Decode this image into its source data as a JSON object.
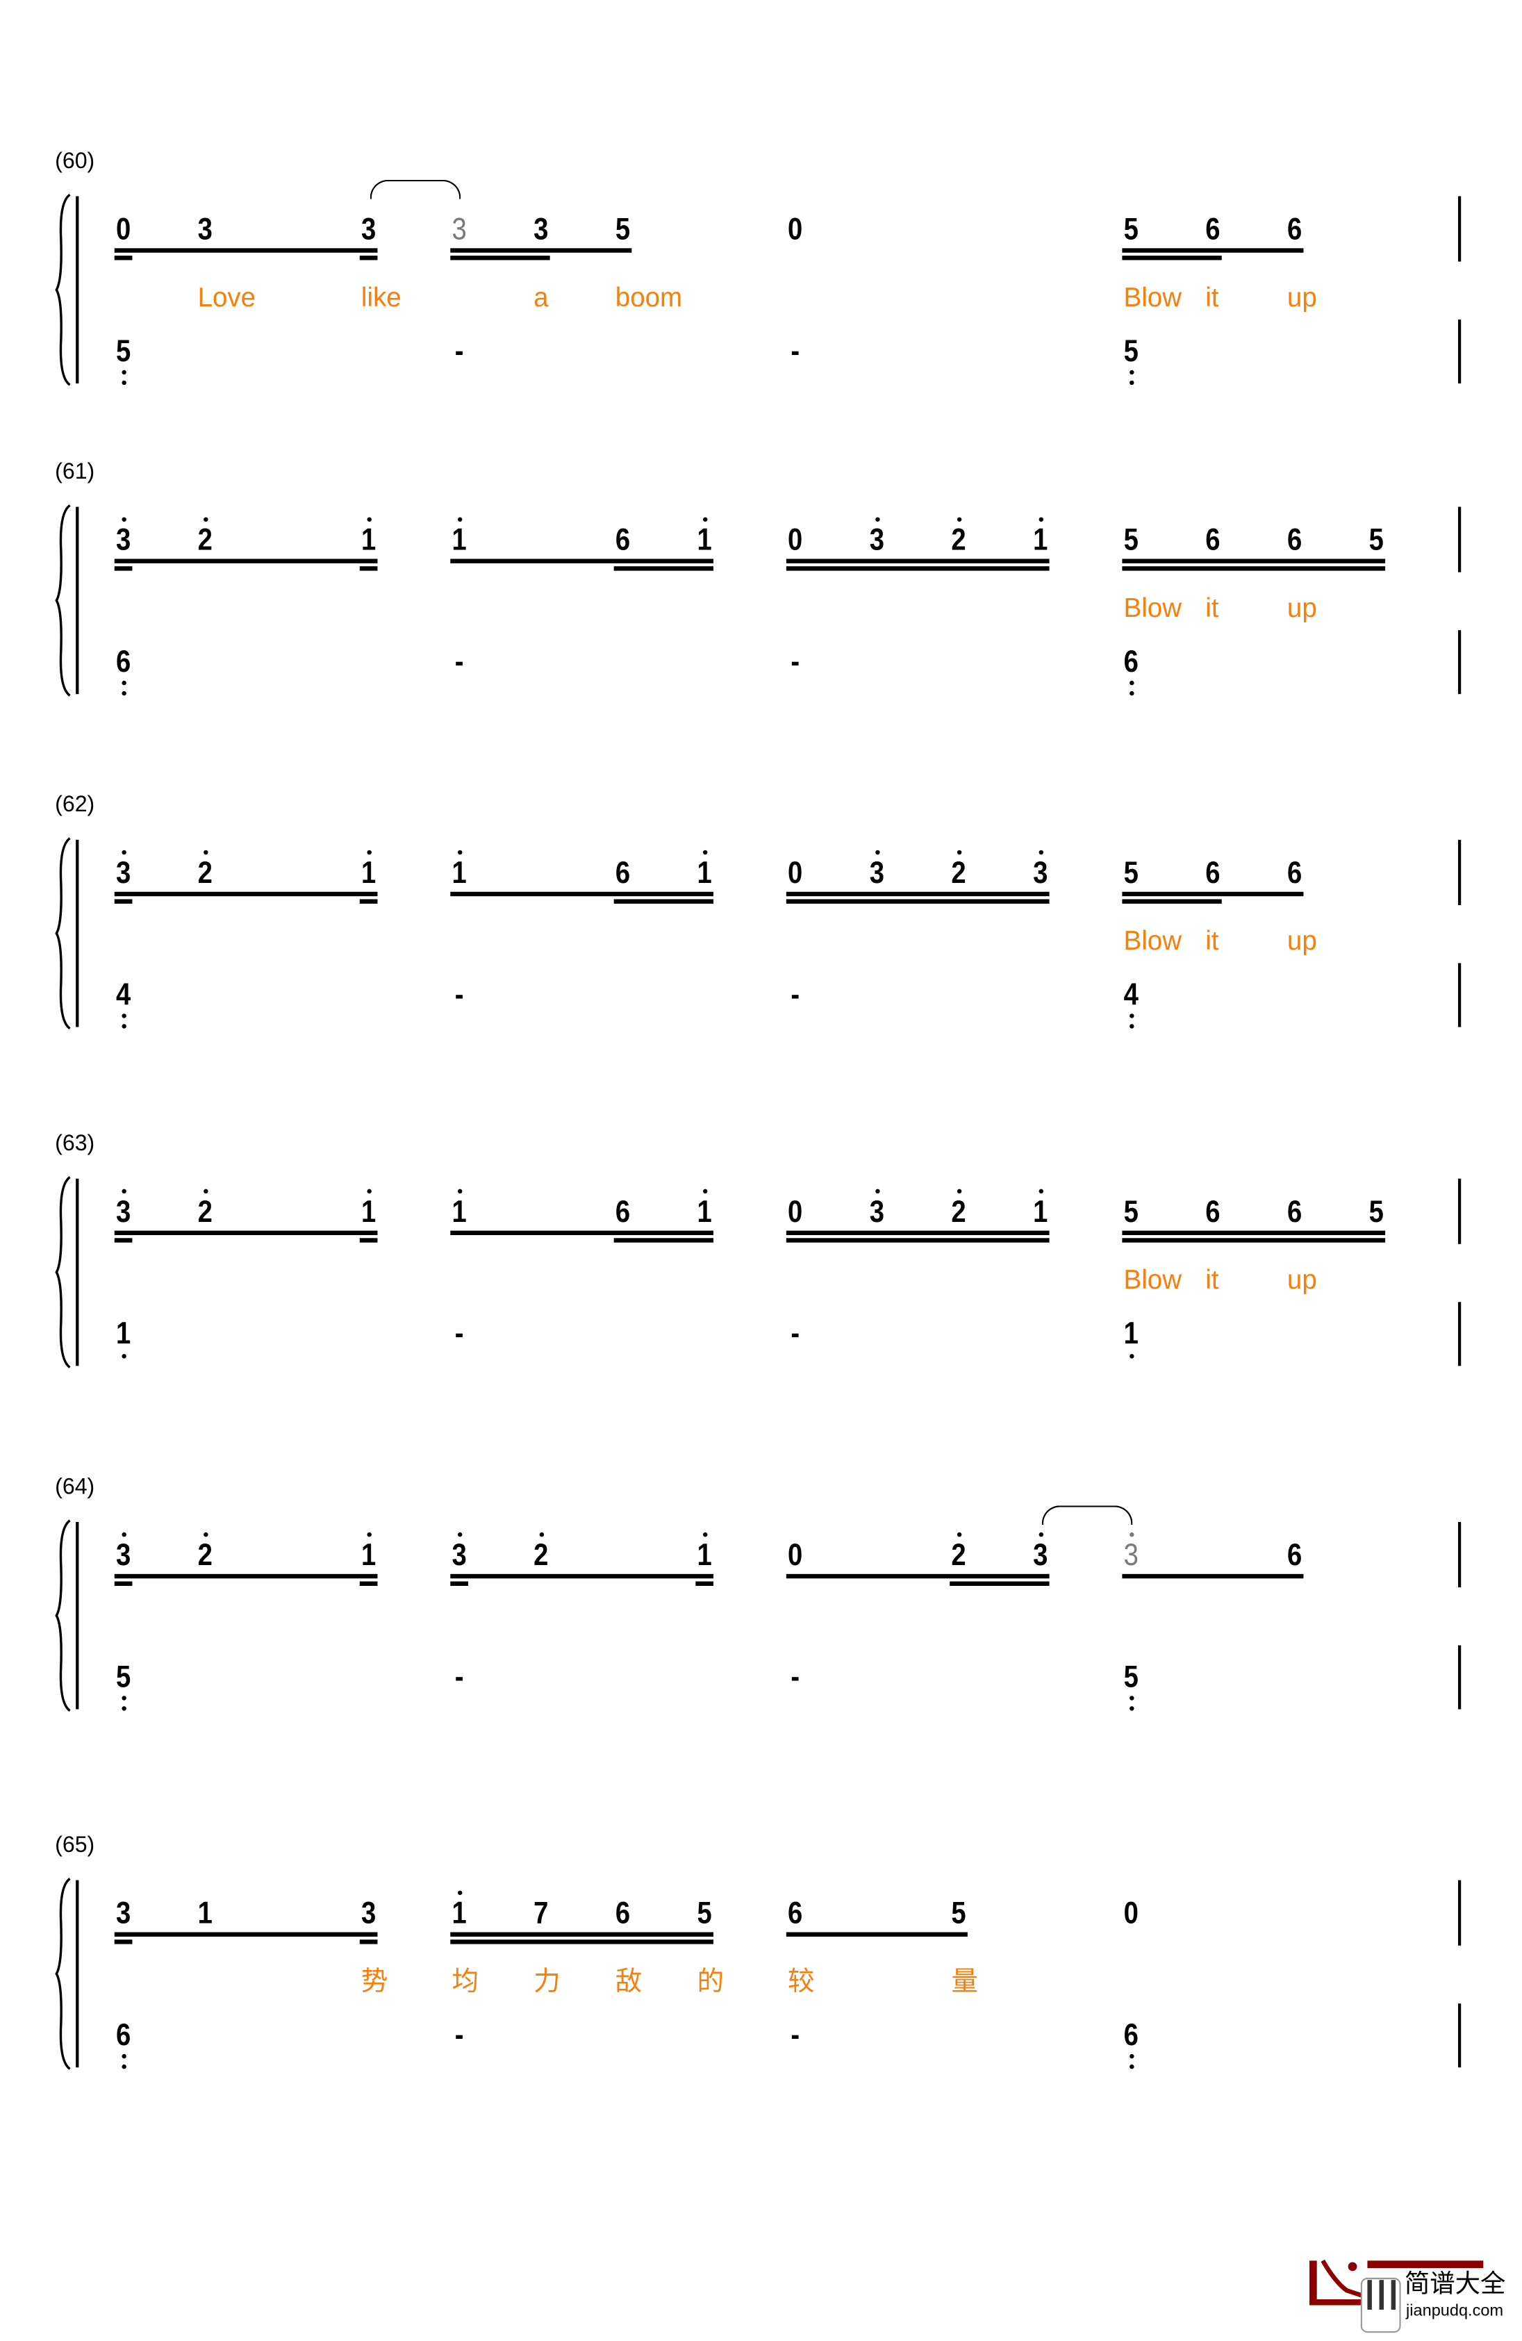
{
  "colors": {
    "lyrics": "#f77f0e",
    "notes": "#000000",
    "grace_notes": "#7a7a7a",
    "logo": "#8b0000"
  },
  "systems": [
    {
      "label": "(60)",
      "top": [
        {
          "s": 0,
          "n": "0"
        },
        {
          "s": 1,
          "n": "3"
        },
        {
          "s": 3,
          "n": "3"
        },
        {
          "s": 4,
          "n": "3",
          "gray": true
        },
        {
          "s": 5,
          "n": "3"
        },
        {
          "s": 6,
          "n": "5"
        },
        {
          "s": 8,
          "n": "0"
        },
        {
          "s": 12,
          "n": "5"
        },
        {
          "s": 13,
          "n": "6"
        },
        {
          "s": 14,
          "n": "6"
        }
      ],
      "beams1": [
        [
          0,
          3
        ],
        [
          4,
          6
        ],
        [
          12,
          14
        ]
      ],
      "beams2": [
        [
          0,
          0
        ],
        [
          3,
          3
        ],
        [
          4,
          5
        ],
        [
          12,
          13
        ]
      ],
      "ties": [
        [
          3,
          4
        ]
      ],
      "lyrics": [
        {
          "s": 1,
          "t": "Love"
        },
        {
          "s": 3,
          "t": "like"
        },
        {
          "s": 5,
          "t": "a"
        },
        {
          "s": 6,
          "t": "boom"
        },
        {
          "s": 12,
          "t": "Blow"
        },
        {
          "s": 13,
          "t": "it"
        },
        {
          "s": 14,
          "t": "up"
        }
      ],
      "bass": [
        {
          "s": 0,
          "n": "5",
          "low": 2
        },
        {
          "s": 4,
          "n": "-"
        },
        {
          "s": 8,
          "n": "-"
        },
        {
          "s": 12,
          "n": "5",
          "low": 2
        }
      ]
    },
    {
      "label": "(61)",
      "top": [
        {
          "s": 0,
          "n": "3",
          "up": 1
        },
        {
          "s": 1,
          "n": "2",
          "up": 1
        },
        {
          "s": 3,
          "n": "1",
          "up": 1
        },
        {
          "s": 4,
          "n": "1",
          "up": 1
        },
        {
          "s": 6,
          "n": "6"
        },
        {
          "s": 7,
          "n": "1",
          "up": 1
        },
        {
          "s": 8,
          "n": "0"
        },
        {
          "s": 9,
          "n": "3",
          "up": 1
        },
        {
          "s": 10,
          "n": "2",
          "up": 1
        },
        {
          "s": 11,
          "n": "1",
          "up": 1
        },
        {
          "s": 12,
          "n": "5"
        },
        {
          "s": 13,
          "n": "6"
        },
        {
          "s": 14,
          "n": "6"
        },
        {
          "s": 15,
          "n": "5"
        }
      ],
      "beams1": [
        [
          0,
          3
        ],
        [
          4,
          7
        ],
        [
          8,
          11
        ],
        [
          12,
          15
        ]
      ],
      "beams2": [
        [
          0,
          0
        ],
        [
          3,
          3
        ],
        [
          6,
          7
        ],
        [
          8,
          11
        ],
        [
          12,
          15
        ]
      ],
      "ties": [],
      "lyrics": [
        {
          "s": 12,
          "t": "Blow"
        },
        {
          "s": 13,
          "t": "it"
        },
        {
          "s": 14,
          "t": "up"
        }
      ],
      "bass": [
        {
          "s": 0,
          "n": "6",
          "low": 2
        },
        {
          "s": 4,
          "n": "-"
        },
        {
          "s": 8,
          "n": "-"
        },
        {
          "s": 12,
          "n": "6",
          "low": 2
        }
      ]
    },
    {
      "label": "(62)",
      "top": [
        {
          "s": 0,
          "n": "3",
          "up": 1
        },
        {
          "s": 1,
          "n": "2",
          "up": 1
        },
        {
          "s": 3,
          "n": "1",
          "up": 1
        },
        {
          "s": 4,
          "n": "1",
          "up": 1
        },
        {
          "s": 6,
          "n": "6"
        },
        {
          "s": 7,
          "n": "1",
          "up": 1
        },
        {
          "s": 8,
          "n": "0"
        },
        {
          "s": 9,
          "n": "3",
          "up": 1
        },
        {
          "s": 10,
          "n": "2",
          "up": 1
        },
        {
          "s": 11,
          "n": "3",
          "up": 1
        },
        {
          "s": 12,
          "n": "5"
        },
        {
          "s": 13,
          "n": "6"
        },
        {
          "s": 14,
          "n": "6"
        }
      ],
      "beams1": [
        [
          0,
          3
        ],
        [
          4,
          7
        ],
        [
          8,
          11
        ],
        [
          12,
          14
        ]
      ],
      "beams2": [
        [
          0,
          0
        ],
        [
          3,
          3
        ],
        [
          6,
          7
        ],
        [
          8,
          11
        ],
        [
          12,
          13
        ]
      ],
      "ties": [],
      "lyrics": [
        {
          "s": 12,
          "t": "Blow"
        },
        {
          "s": 13,
          "t": "it"
        },
        {
          "s": 14,
          "t": "up"
        }
      ],
      "bass": [
        {
          "s": 0,
          "n": "4",
          "low": 2
        },
        {
          "s": 4,
          "n": "-"
        },
        {
          "s": 8,
          "n": "-"
        },
        {
          "s": 12,
          "n": "4",
          "low": 2
        }
      ]
    },
    {
      "label": "(63)",
      "top": [
        {
          "s": 0,
          "n": "3",
          "up": 1
        },
        {
          "s": 1,
          "n": "2",
          "up": 1
        },
        {
          "s": 3,
          "n": "1",
          "up": 1
        },
        {
          "s": 4,
          "n": "1",
          "up": 1
        },
        {
          "s": 6,
          "n": "6"
        },
        {
          "s": 7,
          "n": "1",
          "up": 1
        },
        {
          "s": 8,
          "n": "0"
        },
        {
          "s": 9,
          "n": "3",
          "up": 1
        },
        {
          "s": 10,
          "n": "2",
          "up": 1
        },
        {
          "s": 11,
          "n": "1",
          "up": 1
        },
        {
          "s": 12,
          "n": "5"
        },
        {
          "s": 13,
          "n": "6"
        },
        {
          "s": 14,
          "n": "6"
        },
        {
          "s": 15,
          "n": "5"
        }
      ],
      "beams1": [
        [
          0,
          3
        ],
        [
          4,
          7
        ],
        [
          8,
          11
        ],
        [
          12,
          15
        ]
      ],
      "beams2": [
        [
          0,
          0
        ],
        [
          3,
          3
        ],
        [
          6,
          7
        ],
        [
          8,
          11
        ],
        [
          12,
          15
        ]
      ],
      "ties": [],
      "lyrics": [
        {
          "s": 12,
          "t": "Blow"
        },
        {
          "s": 13,
          "t": "it"
        },
        {
          "s": 14,
          "t": "up"
        }
      ],
      "bass": [
        {
          "s": 0,
          "n": "1",
          "low": 1
        },
        {
          "s": 4,
          "n": "-"
        },
        {
          "s": 8,
          "n": "-"
        },
        {
          "s": 12,
          "n": "1",
          "low": 1
        }
      ]
    },
    {
      "label": "(64)",
      "top": [
        {
          "s": 0,
          "n": "3",
          "up": 1
        },
        {
          "s": 1,
          "n": "2",
          "up": 1
        },
        {
          "s": 3,
          "n": "1",
          "up": 1
        },
        {
          "s": 4,
          "n": "3",
          "up": 1
        },
        {
          "s": 5,
          "n": "2",
          "up": 1
        },
        {
          "s": 7,
          "n": "1",
          "up": 1
        },
        {
          "s": 8,
          "n": "0"
        },
        {
          "s": 10,
          "n": "2",
          "up": 1
        },
        {
          "s": 11,
          "n": "3",
          "up": 1
        },
        {
          "s": 12,
          "n": "3",
          "up": 1,
          "gray": true
        },
        {
          "s": 14,
          "n": "6"
        }
      ],
      "beams1": [
        [
          0,
          3
        ],
        [
          4,
          7
        ],
        [
          8,
          11
        ],
        [
          12,
          14
        ]
      ],
      "beams2": [
        [
          0,
          0
        ],
        [
          3,
          3
        ],
        [
          4,
          4
        ],
        [
          7,
          7
        ],
        [
          10,
          11
        ]
      ],
      "ties": [
        [
          11,
          12
        ]
      ],
      "lyrics": [],
      "bass": [
        {
          "s": 0,
          "n": "5",
          "low": 2
        },
        {
          "s": 4,
          "n": "-"
        },
        {
          "s": 8,
          "n": "-"
        },
        {
          "s": 12,
          "n": "5",
          "low": 2
        }
      ]
    },
    {
      "label": "(65)",
      "top": [
        {
          "s": 0,
          "n": "3"
        },
        {
          "s": 1,
          "n": "1"
        },
        {
          "s": 3,
          "n": "3"
        },
        {
          "s": 4,
          "n": "1",
          "up": 1
        },
        {
          "s": 5,
          "n": "7"
        },
        {
          "s": 6,
          "n": "6"
        },
        {
          "s": 7,
          "n": "5"
        },
        {
          "s": 8,
          "n": "6"
        },
        {
          "s": 10,
          "n": "5"
        },
        {
          "s": 12,
          "n": "0"
        }
      ],
      "beams1": [
        [
          0,
          3
        ],
        [
          4,
          7
        ],
        [
          8,
          10
        ]
      ],
      "beams2": [
        [
          0,
          0
        ],
        [
          3,
          3
        ],
        [
          4,
          7
        ]
      ],
      "ties": [],
      "lyrics": [
        {
          "s": 3,
          "t": "势"
        },
        {
          "s": 4,
          "t": "均"
        },
        {
          "s": 5,
          "t": "力"
        },
        {
          "s": 6,
          "t": "敌"
        },
        {
          "s": 7,
          "t": "的"
        },
        {
          "s": 8,
          "t": "较"
        },
        {
          "s": 10,
          "t": "量"
        }
      ],
      "bass": [
        {
          "s": 0,
          "n": "6",
          "low": 2
        },
        {
          "s": 4,
          "n": "-"
        },
        {
          "s": 8,
          "n": "-"
        },
        {
          "s": 12,
          "n": "6",
          "low": 2
        }
      ]
    }
  ],
  "logo": {
    "title": "简谱大全",
    "url": "jianpudq.com",
    "icon": "piano-keys-icon"
  }
}
